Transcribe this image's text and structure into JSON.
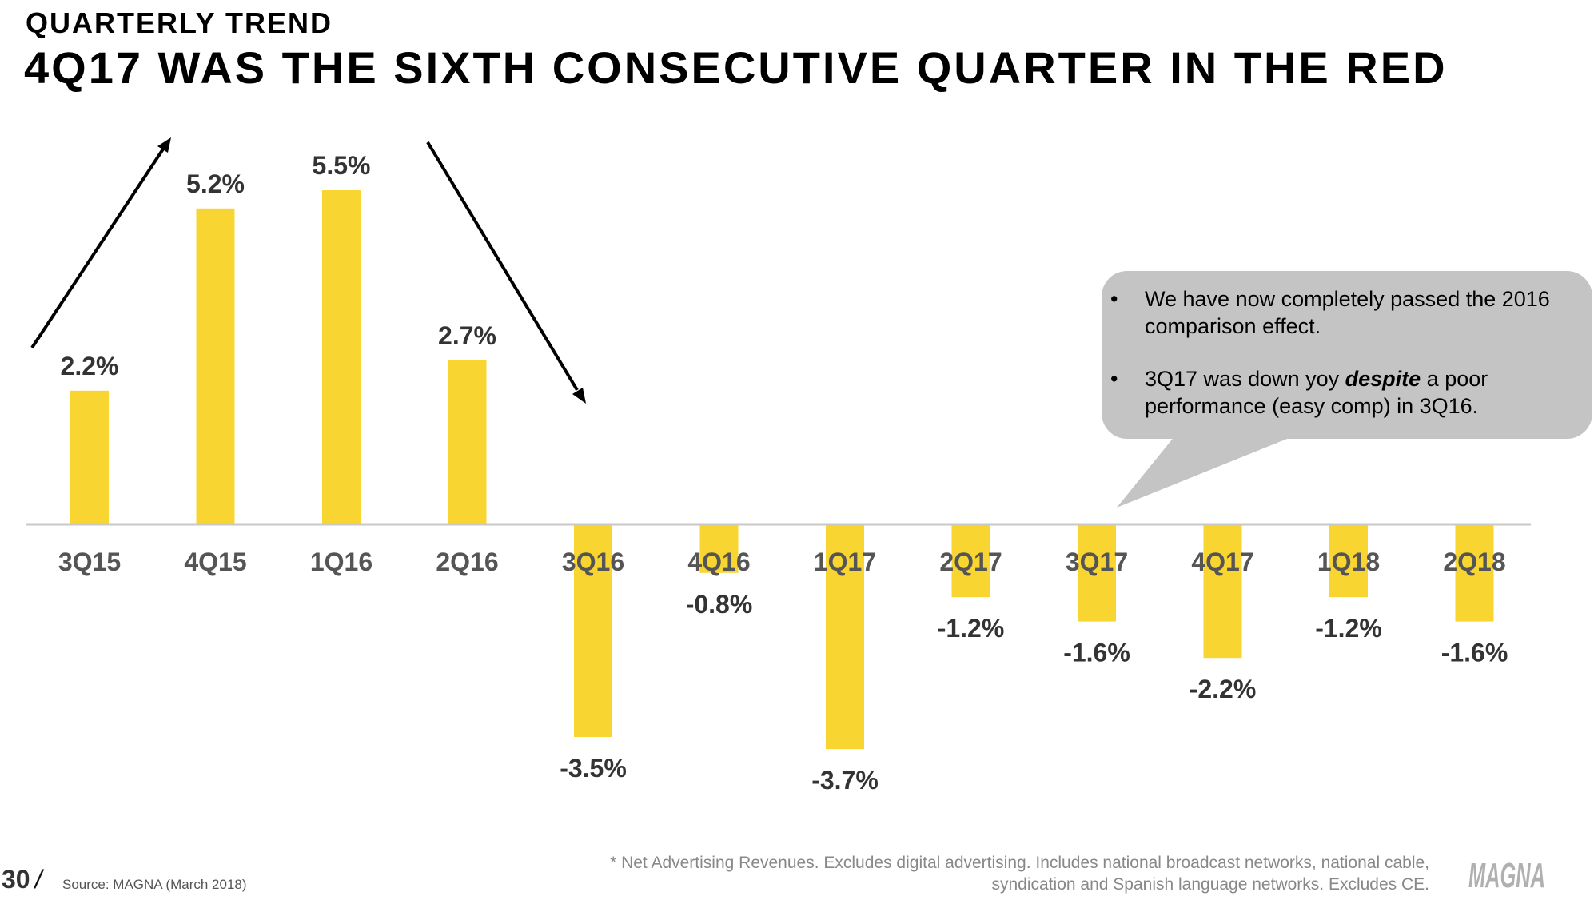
{
  "header": {
    "kicker": "QUARTERLY TREND",
    "title": "4Q17 WAS THE SIXTH CONSECUTIVE QUARTER IN THE RED"
  },
  "chart_data": {
    "type": "bar",
    "categories": [
      "3Q15",
      "4Q15",
      "1Q16",
      "2Q16",
      "3Q16",
      "4Q16",
      "1Q17",
      "2Q17",
      "3Q17",
      "4Q17",
      "1Q18",
      "2Q18"
    ],
    "values": [
      2.2,
      5.2,
      5.5,
      2.7,
      -3.5,
      -0.8,
      -3.7,
      -1.2,
      -1.6,
      -2.2,
      -1.2,
      -1.6
    ],
    "labels": [
      "2.2%",
      "5.2%",
      "5.5%",
      "2.7%",
      "-3.5%",
      "-0.8%",
      "-3.7%",
      "-1.2%",
      "-1.6%",
      "-2.2%",
      "-1.2%",
      "-1.6%"
    ],
    "ylim": [
      -4.5,
      6.5
    ],
    "grid": false,
    "legend": "none",
    "bar_color": "#f9d531",
    "baseline_color": "#c8c8c8",
    "annotations": [
      "up-trend-arrow",
      "down-trend-arrow"
    ]
  },
  "callout": {
    "bullet": "•",
    "item1": "We have now completely passed the 2016 comparison effect.",
    "item2_pre": "3Q17 was down yoy ",
    "item2_em": "despite",
    "item2_post": " a poor performance (easy comp) in 3Q16."
  },
  "footer": {
    "page_number": "30",
    "slash": "/",
    "source": "Source: MAGNA (March 2018)",
    "footnote": "* Net Advertising Revenues. Excludes digital advertising. Includes national broadcast networks, national cable, syndication and Spanish language networks. Excludes CE.",
    "logo_text": "MAGNA",
    "logo_icon": "magna-logo"
  }
}
